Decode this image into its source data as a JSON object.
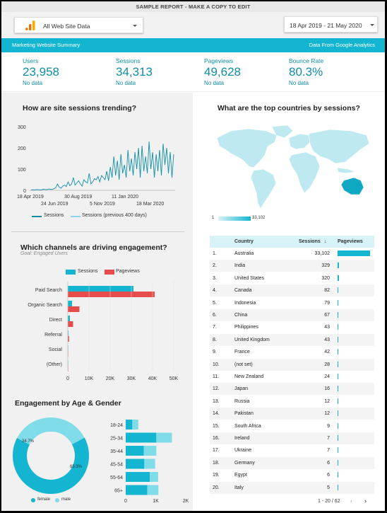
{
  "banner": "SAMPLE REPORT - MAKE A COPY TO EDIT",
  "datasource": {
    "label": "All Web Site Data",
    "icon": "analytics-logo-icon"
  },
  "daterange": {
    "label": "18 Apr 2019 - 21 May 2020"
  },
  "header": {
    "left": "Marketing Website Summary",
    "right": "Data From Google Analytics"
  },
  "kpis": [
    {
      "title": "Users",
      "value": "23,958",
      "sub": "No data"
    },
    {
      "title": "Sessions",
      "value": "34,313",
      "sub": "No data"
    },
    {
      "title": "Pageviews",
      "value": "49,628",
      "sub": "No data"
    },
    {
      "title": "Bounce Rate",
      "value": "80.3%",
      "sub": "No data"
    }
  ],
  "colors": {
    "teal": "#14b5d0",
    "red": "#e74c4c",
    "light_teal": "#7fdce8",
    "accent_text": "#0e8ea7"
  },
  "trend": {
    "title": "How are site sessions trending?",
    "y_ticks": [
      "300",
      "200",
      "100",
      "0"
    ],
    "x_ticks_top": [
      "18 Apr 2019",
      "30 Aug 2019",
      "11 Jan 2020"
    ],
    "x_ticks_bottom": [
      "24 Jun 2019",
      "5 Nov 2019",
      "18 Mar 2020"
    ],
    "legend": [
      "Sessions",
      "Sessions (previous 400 days)"
    ]
  },
  "channels": {
    "title": "Which channels are driving engagement?",
    "subtitle": "Goal: Engaged Users",
    "legend": [
      "Sessions",
      "Pageviews"
    ],
    "x_ticks": [
      "0",
      "10K",
      "20K",
      "30K",
      "40K",
      "50K"
    ]
  },
  "age_gender": {
    "title": "Engagement by Age & Gender",
    "donut_labels": [
      "34.7%",
      "65.3%"
    ],
    "legend": [
      "female",
      "male"
    ],
    "x_ticks": [
      "0",
      "1K",
      "2K"
    ]
  },
  "map": {
    "title": "What are the top countries by sessions?",
    "scale_min": "1",
    "scale_max": "33,102"
  },
  "table": {
    "headers": [
      "Country",
      "Sessions",
      "Pageviews"
    ],
    "sort_indicator": "↓",
    "rows": [
      {
        "n": "1.",
        "country": "Australia",
        "sessions": "33,102"
      },
      {
        "n": "2.",
        "country": "India",
        "sessions": "329"
      },
      {
        "n": "3.",
        "country": "United States",
        "sessions": "320"
      },
      {
        "n": "4.",
        "country": "Canada",
        "sessions": "82"
      },
      {
        "n": "5.",
        "country": "Indonesia",
        "sessions": "79"
      },
      {
        "n": "6.",
        "country": "China",
        "sessions": "67"
      },
      {
        "n": "7.",
        "country": "Philippines",
        "sessions": "43"
      },
      {
        "n": "8.",
        "country": "United Kingdom",
        "sessions": "43"
      },
      {
        "n": "9.",
        "country": "France",
        "sessions": "42"
      },
      {
        "n": "10.",
        "country": "(not set)",
        "sessions": "28"
      },
      {
        "n": "11.",
        "country": "New Zealand",
        "sessions": "24"
      },
      {
        "n": "12.",
        "country": "Japan",
        "sessions": "16"
      },
      {
        "n": "13.",
        "country": "Russia",
        "sessions": "12"
      },
      {
        "n": "14.",
        "country": "Pakistan",
        "sessions": "12"
      },
      {
        "n": "15.",
        "country": "South Africa",
        "sessions": "9"
      },
      {
        "n": "16.",
        "country": "Ireland",
        "sessions": "7"
      },
      {
        "n": "17.",
        "country": "Ukraine",
        "sessions": "7"
      },
      {
        "n": "18.",
        "country": "Germany",
        "sessions": "6"
      },
      {
        "n": "19.",
        "country": "Egypt",
        "sessions": "6"
      },
      {
        "n": "20.",
        "country": "Italy",
        "sessions": "5"
      }
    ],
    "pagination": "1 - 20 / 62"
  },
  "chart_data": [
    {
      "type": "line",
      "title": "How are site sessions trending?",
      "x_ticks": [
        "18 Apr 2019",
        "24 Jun 2019",
        "30 Aug 2019",
        "5 Nov 2019",
        "11 Jan 2020",
        "18 Mar 2020"
      ],
      "ylim": [
        0,
        300
      ],
      "series": [
        {
          "name": "Sessions",
          "values": [
            2,
            3,
            2,
            4,
            3,
            2,
            3,
            5,
            4,
            3,
            6,
            5,
            4,
            8,
            12,
            30,
            15,
            10,
            20,
            25,
            18,
            40,
            22,
            30,
            60,
            25,
            35,
            45,
            30,
            20,
            50,
            40,
            35,
            80,
            30,
            40,
            55,
            50,
            65,
            40,
            70,
            60,
            50,
            90,
            45,
            110,
            60,
            160,
            70,
            140,
            50,
            170,
            80,
            120,
            60,
            190,
            90,
            150,
            70,
            180,
            100,
            200,
            60,
            210,
            90,
            160,
            80,
            230,
            100,
            180,
            60,
            170,
            90,
            190,
            70,
            220,
            120,
            200,
            80,
            180,
            60,
            170
          ]
        },
        {
          "name": "Sessions (previous 400 days)",
          "values": []
        }
      ]
    },
    {
      "type": "bar",
      "title": "Which channels are driving engagement?",
      "categories": [
        "Paid Search",
        "Organic Search",
        "Direct",
        "Referral",
        "Social",
        "(Other)"
      ],
      "series": [
        {
          "name": "Sessions",
          "values": [
            31000,
            2000,
            1000,
            300,
            50,
            10
          ]
        },
        {
          "name": "Pageviews",
          "values": [
            41000,
            5500,
            2500,
            600,
            100,
            20
          ]
        }
      ],
      "xlim": [
        0,
        50000
      ]
    },
    {
      "type": "pie",
      "title": "Engagement by Age & Gender",
      "labels": [
        "female",
        "male"
      ],
      "values": [
        65.3,
        34.7
      ]
    },
    {
      "type": "bar",
      "stacked": true,
      "categories": [
        "18-24",
        "25-34",
        "35-44",
        "45-54",
        "55-64",
        "65+"
      ],
      "series": [
        {
          "name": "female",
          "values": [
            220,
            1020,
            600,
            620,
            800,
            720
          ]
        },
        {
          "name": "male",
          "values": [
            200,
            520,
            420,
            360,
            280,
            370
          ]
        }
      ],
      "xlim": [
        0,
        2000
      ]
    }
  ]
}
